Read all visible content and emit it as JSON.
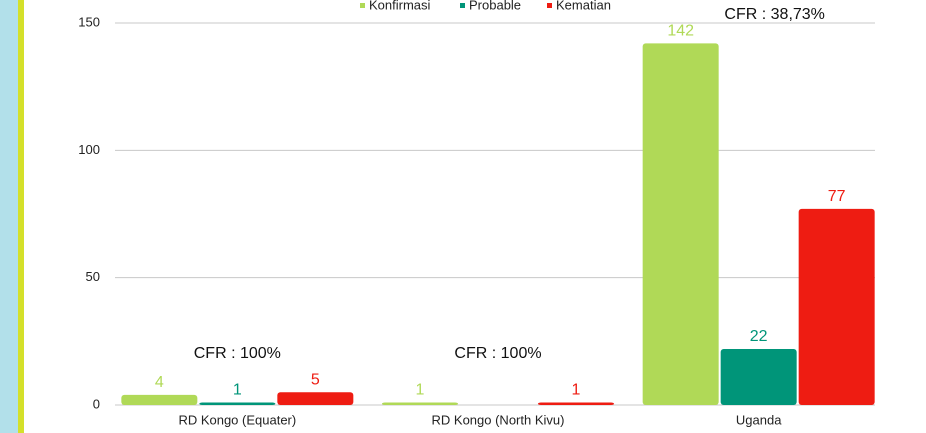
{
  "chart_data": {
    "type": "bar",
    "categories": [
      "RD Kongo (Equater)",
      "RD Kongo (North Kivu)",
      "Uganda"
    ],
    "series": [
      {
        "name": "Konfirmasi",
        "color": "#b0d957",
        "values": [
          4,
          1,
          142
        ]
      },
      {
        "name": "Probable",
        "color": "#009579",
        "values": [
          1,
          null,
          22
        ]
      },
      {
        "name": "Kematian",
        "color": "#ee1c12",
        "values": [
          5,
          1,
          77
        ]
      }
    ],
    "annotations": [
      "CFR : 100%",
      "CFR : 100%",
      "CFR : 38,73%"
    ],
    "ylim": [
      0,
      150
    ],
    "yticks": [
      0,
      50,
      100,
      150
    ],
    "grid": true,
    "legend": "top"
  }
}
